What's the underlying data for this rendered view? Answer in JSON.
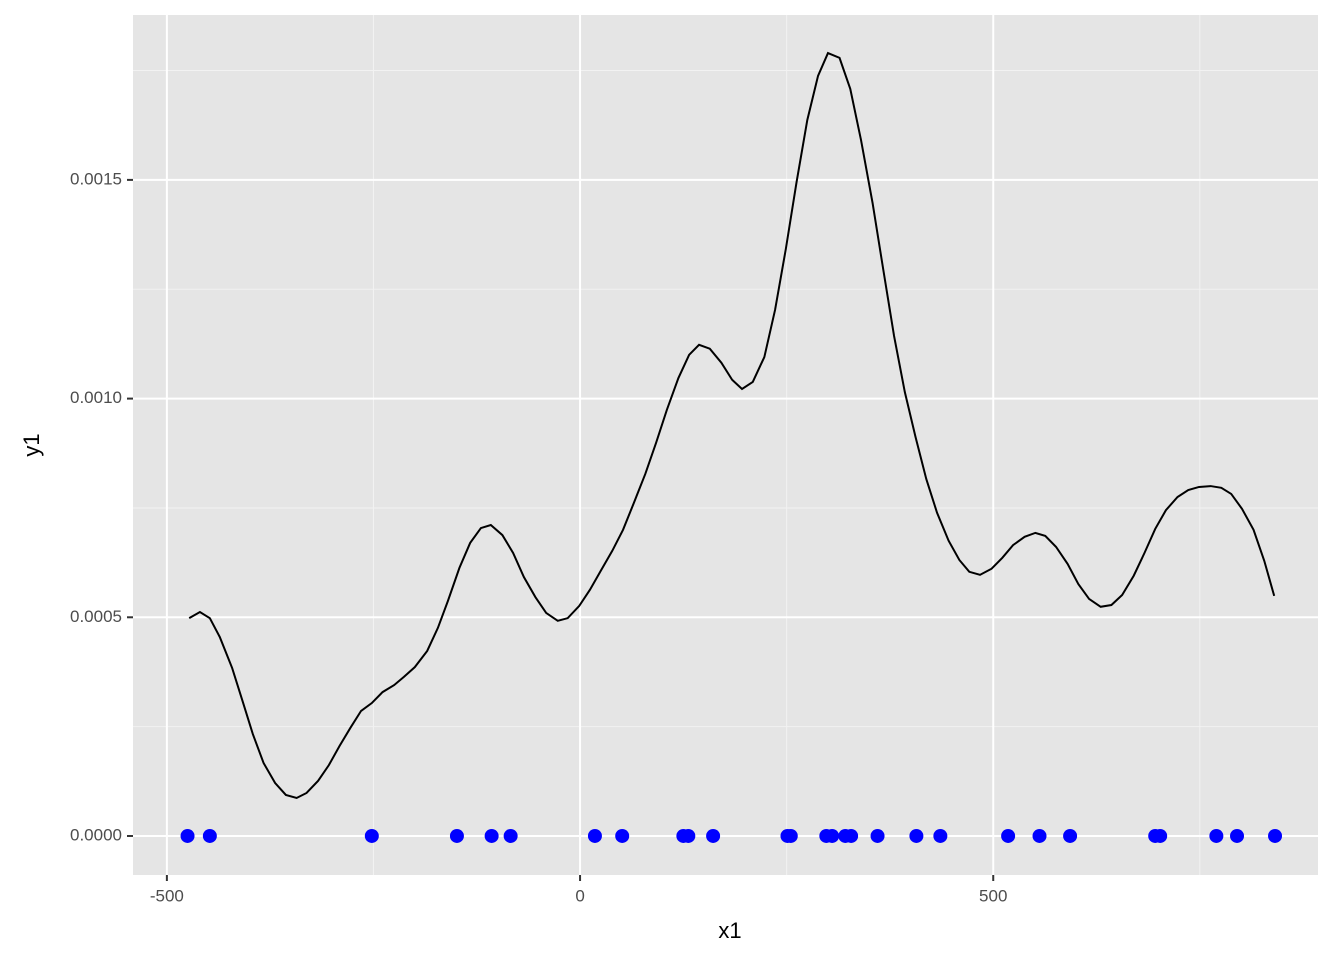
{
  "chart_data": {
    "type": "line",
    "xlabel": "x1",
    "ylabel": "y1",
    "xlim": [
      -541,
      893
    ],
    "ylim": [
      -8.92e-05,
      0.001877
    ],
    "xticks": [
      -500,
      0,
      500
    ],
    "yticks": [
      {
        "value": 0,
        "label": "0.0000"
      },
      {
        "value": 0.0005,
        "label": "0.0005"
      },
      {
        "value": 0.001,
        "label": "0.0010"
      },
      {
        "value": 0.0015,
        "label": "0.0015"
      }
    ],
    "xminor": [
      -250,
      250,
      750
    ],
    "yminor": [
      0.00025,
      0.00075,
      0.00125,
      0.00175
    ],
    "grid": true,
    "line": {
      "color": "#000000",
      "x": [
        -473,
        -460,
        -448,
        -436,
        -421,
        -408,
        -396,
        -383,
        -369,
        -356,
        -343,
        -331,
        -317,
        -304,
        -291,
        -278,
        -265,
        -252,
        -239,
        -225,
        -213,
        -200,
        -185,
        -172,
        -160,
        -146,
        -133,
        -120,
        -108,
        -94,
        -81,
        -68,
        -54,
        -41,
        -27,
        -15,
        -1,
        12,
        25,
        39,
        52,
        65,
        79,
        92,
        105,
        119,
        132,
        144,
        157,
        171,
        184,
        196,
        209,
        223,
        236,
        249,
        262,
        275,
        288,
        300,
        314,
        327,
        340,
        354,
        367,
        380,
        393,
        406,
        419,
        432,
        446,
        459,
        471,
        484,
        498,
        511,
        524,
        538,
        551,
        563,
        576,
        590,
        603,
        616,
        630,
        643,
        656,
        670,
        683,
        696,
        709,
        723,
        736,
        749,
        763,
        776,
        788,
        801,
        815,
        828,
        840
      ],
      "y": [
        0.000498,
        0.000512,
        0.000498,
        0.000455,
        0.000384,
        0.000306,
        0.000233,
        0.000167,
        0.000121,
        9.38e-05,
        8.69e-05,
        9.83e-05,
        0.000126,
        0.000162,
        0.000206,
        0.000247,
        0.000286,
        0.000304,
        0.000329,
        0.000345,
        0.000364,
        0.000386,
        0.000423,
        0.000476,
        0.000537,
        0.000613,
        0.00067,
        0.000704,
        0.000711,
        0.000688,
        0.000647,
        0.000592,
        0.000546,
        0.00051,
        0.000492,
        0.000498,
        0.000526,
        0.000563,
        0.000606,
        0.000652,
        0.0007,
        0.000761,
        0.000828,
        0.000899,
        0.000974,
        0.001047,
        0.0011,
        0.001123,
        0.001114,
        0.001082,
        0.001043,
        0.001022,
        0.001038,
        0.001095,
        0.001203,
        0.001342,
        0.001495,
        0.001637,
        0.001738,
        0.00179,
        0.001779,
        0.001708,
        0.001591,
        0.001447,
        0.001294,
        0.001143,
        0.001015,
        0.000912,
        0.000816,
        0.000739,
        0.000675,
        0.000631,
        0.000604,
        0.000597,
        0.000611,
        0.000636,
        0.000665,
        0.000684,
        0.000693,
        0.000686,
        0.000661,
        0.000622,
        0.000576,
        0.000542,
        0.000524,
        0.000528,
        0.000551,
        0.000595,
        0.000647,
        0.000702,
        0.000745,
        0.000775,
        0.000791,
        0.000798,
        0.0008,
        0.000796,
        0.000782,
        0.000748,
        0.0007,
        0.000629,
        0.000549
      ]
    },
    "points": {
      "color": "#0000ff",
      "x": [
        -475,
        -448,
        -252,
        -149,
        -107,
        -84,
        18,
        51,
        125,
        131,
        161,
        251,
        255,
        298,
        305,
        321,
        328,
        360,
        407,
        436,
        518,
        556,
        593,
        696,
        702,
        770,
        795,
        841
      ],
      "y": [
        0,
        0,
        0,
        0,
        0,
        0,
        0,
        0,
        0,
        0,
        0,
        0,
        0,
        0,
        0,
        0,
        0,
        0,
        0,
        0,
        0,
        0,
        0,
        0,
        0,
        0,
        0,
        0
      ]
    }
  }
}
